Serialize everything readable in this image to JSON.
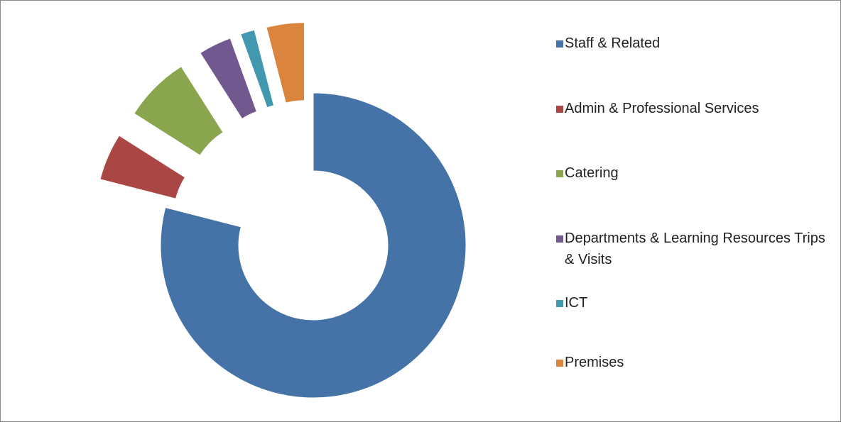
{
  "chart_data": {
    "type": "pie",
    "categories": [
      "Staff & Related",
      "Admin & Professional Services",
      "Catering",
      "Departments & Learning Resources Trips & Visits",
      "ICT",
      "Premises"
    ],
    "values": [
      79,
      5,
      7,
      3.5,
      1.5,
      4
    ],
    "colors": [
      "#4573a7",
      "#aa4643",
      "#89a54e",
      "#71588f",
      "#4198af",
      "#db843d"
    ],
    "legend": "right"
  }
}
